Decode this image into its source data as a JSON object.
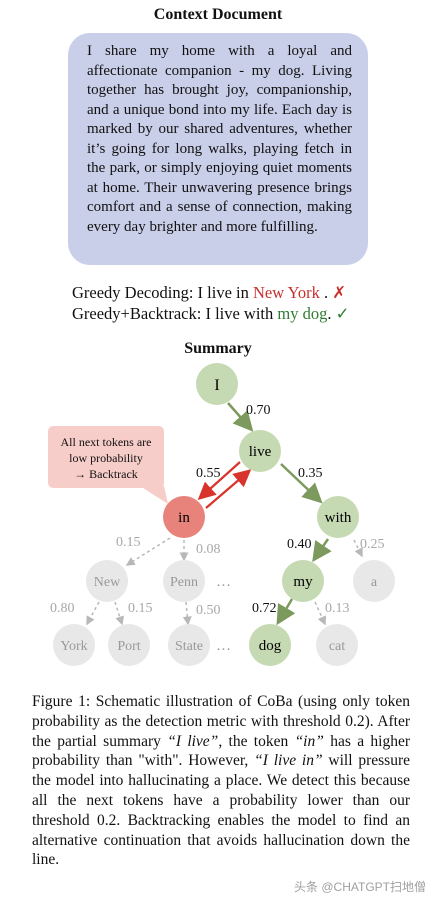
{
  "context_document": {
    "title": "Context Document",
    "text": "I share my home with a loyal and affectionate companion - my dog. Living together has brought joy, companionship, and a unique bond into my life. Each day is marked by our shared adventures, whether it’s going for long walks, playing fetch in the park, or simply enjoying quiet moments at home. Their unwavering presence brings comfort and a sense of connection, making every day brighter and more fulfilling."
  },
  "greedy": {
    "label": "Greedy Decoding: I live in ",
    "highlight": "New York",
    "suffix": " . ",
    "mark": "✗"
  },
  "backtrack": {
    "label": "Greedy+Backtrack: I live with ",
    "highlight": "my dog",
    "suffix": ". ",
    "mark": "✓"
  },
  "summary": {
    "title": "Summary",
    "nodes": {
      "I": "I",
      "live": "live",
      "in": "in",
      "with": "with",
      "new": "New",
      "penn": "Penn",
      "my": "my",
      "a": "a",
      "york": "York",
      "port": "Port",
      "state": "State",
      "dog": "dog",
      "cat": "cat",
      "ellipsis1": "…",
      "ellipsis2": "…"
    },
    "probs": {
      "i_live": "0.70",
      "live_in": "0.55",
      "live_with": "0.35",
      "in_new": "0.15",
      "in_penn": "0.08",
      "with_my": "0.40",
      "with_a": "0.25",
      "new_york": "0.80",
      "new_port": "0.15",
      "penn_state": "0.50",
      "my_dog": "0.72",
      "my_cat": "0.13"
    },
    "callout": {
      "line1": "All next tokens are",
      "line2": "low probability",
      "line3": "→ Backtrack"
    },
    "colors": {
      "green_node": "#c5d9b3",
      "red_node": "#e8837b",
      "grey_node": "#e8e8e8",
      "green_arrow": "#7d9a5e",
      "red_arrow": "#d9342b",
      "callout_bg": "#f7cdc9"
    }
  },
  "caption": {
    "p1": "Figure 1: Schematic illustration of CoBa (using only token probability as the detection metric with threshold 0.2). After the partial summary ",
    "q1": "“I live”",
    "p2": ", the token ",
    "q2": "“in”",
    "p3": " has a higher probability than \"with\". However, ",
    "q3": "“I live in”",
    "p4": " will pressure the model into hallucinating a place. We detect this because all the next tokens have a probability lower than our threshold 0.2. Backtracking enables the model to find an alternative continuation that avoids hallucination down the line."
  },
  "watermark": "头条 @CHATGPT扫地僧"
}
